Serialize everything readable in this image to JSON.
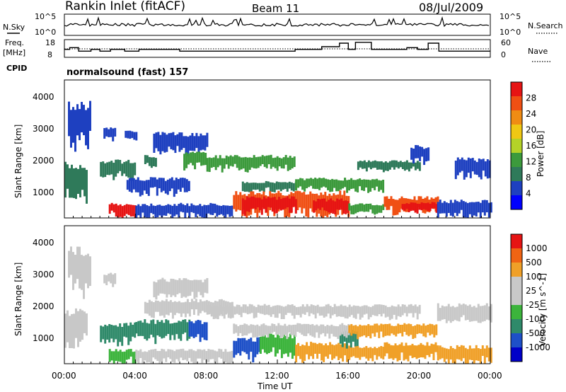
{
  "header": {
    "station": "Rankin Inlet (fitACF)",
    "beam": "Beam 11",
    "date": "08/Jul/2009",
    "cpid_label": "CPID",
    "cpid_value": "normalsound (fast) 157"
  },
  "nsky_panel": {
    "left_label": "N.Sky",
    "right_label": "N.Search",
    "left_ticks": [
      "10^5",
      "10^0"
    ],
    "right_ticks": [
      "10^5",
      "10^0"
    ]
  },
  "freq_panel": {
    "left_label_1": "Freq.",
    "left_label_2": "[MHz]",
    "right_label": "Nave",
    "left_ticks": [
      "18",
      "8"
    ],
    "right_ticks": [
      "60",
      "0"
    ],
    "freq_steps": [
      {
        "t0": 0.0,
        "t1": 0.3,
        "v": 12.5
      },
      {
        "t0": 0.3,
        "t1": 0.8,
        "v": 13.5
      },
      {
        "t0": 0.8,
        "t1": 1.5,
        "v": 11.5
      },
      {
        "t0": 1.5,
        "t1": 2.0,
        "v": 12.5
      },
      {
        "t0": 2.0,
        "t1": 2.6,
        "v": 11.5
      },
      {
        "t0": 2.6,
        "t1": 3.4,
        "v": 12.5
      },
      {
        "t0": 3.4,
        "t1": 4.2,
        "v": 11.5
      },
      {
        "t0": 4.2,
        "t1": 6.5,
        "v": 12.5
      },
      {
        "t0": 6.5,
        "t1": 10.0,
        "v": 11.5
      },
      {
        "t0": 10.0,
        "t1": 13.0,
        "v": 11.5
      },
      {
        "t0": 13.0,
        "t1": 14.5,
        "v": 12.5
      },
      {
        "t0": 14.5,
        "t1": 15.5,
        "v": 14.0
      },
      {
        "t0": 15.5,
        "t1": 16.0,
        "v": 16.0
      },
      {
        "t0": 16.0,
        "t1": 16.4,
        "v": 12.5
      },
      {
        "t0": 16.4,
        "t1": 17.3,
        "v": 16.5
      },
      {
        "t0": 17.3,
        "t1": 19.3,
        "v": 12.5
      },
      {
        "t0": 19.3,
        "t1": 19.9,
        "v": 13.5
      },
      {
        "t0": 19.9,
        "t1": 20.5,
        "v": 12.5
      },
      {
        "t0": 20.5,
        "t1": 21.1,
        "v": 16.0
      },
      {
        "t0": 21.1,
        "t1": 24.0,
        "v": 11.5
      }
    ]
  },
  "chart_data": [
    {
      "type": "heatmap",
      "quantity": "power",
      "ylabel": "Slant Range [km]",
      "ylim": [
        180,
        4500
      ],
      "yticks": [
        "1000",
        "2000",
        "3000",
        "4000"
      ],
      "xlim_hours": [
        0,
        24
      ],
      "colorbar": {
        "label": "Power [dB]",
        "ticks": [
          "28",
          "24",
          "20",
          "16",
          "12",
          "8",
          "4"
        ],
        "colors": [
          "#0000ff",
          "#1e40c0",
          "#2f7a5a",
          "#3c9a3c",
          "#b4d228",
          "#f0c814",
          "#f08c14",
          "#f05014",
          "#e61414"
        ]
      },
      "regions": [
        {
          "t0": 0.0,
          "t1": 1.2,
          "r0": 700,
          "r1": 1800,
          "c": 2
        },
        {
          "t0": 0.2,
          "t1": 1.5,
          "r0": 2400,
          "r1": 3700,
          "c": 1
        },
        {
          "t0": 2.2,
          "t1": 2.8,
          "r0": 2600,
          "r1": 3000,
          "c": 1
        },
        {
          "t0": 3.4,
          "t1": 4.0,
          "r0": 2600,
          "r1": 2900,
          "c": 1
        },
        {
          "t0": 2.0,
          "t1": 4.0,
          "r0": 1400,
          "r1": 1950,
          "c": 2
        },
        {
          "t0": 4.5,
          "t1": 5.2,
          "r0": 1700,
          "r1": 2100,
          "c": 2
        },
        {
          "t0": 5.0,
          "t1": 8.0,
          "r0": 2200,
          "r1": 2800,
          "c": 1
        },
        {
          "t0": 6.7,
          "t1": 8.0,
          "r0": 1750,
          "r1": 2250,
          "c": 3
        },
        {
          "t0": 3.5,
          "t1": 7.0,
          "r0": 900,
          "r1": 1400,
          "c": 1
        },
        {
          "t0": 2.5,
          "t1": 4.0,
          "r0": 200,
          "r1": 600,
          "c": 8
        },
        {
          "t0": 4.0,
          "t1": 9.5,
          "r0": 180,
          "r1": 600,
          "c": 1
        },
        {
          "t0": 8.0,
          "t1": 13.0,
          "r0": 1650,
          "r1": 2100,
          "c": 3
        },
        {
          "t0": 10.0,
          "t1": 13.0,
          "r0": 1000,
          "r1": 1300,
          "c": 2
        },
        {
          "t0": 13.0,
          "t1": 18.0,
          "r0": 1000,
          "r1": 1400,
          "c": 3
        },
        {
          "t0": 16.5,
          "t1": 20.0,
          "r0": 1650,
          "r1": 1950,
          "c": 2
        },
        {
          "t0": 9.5,
          "t1": 16.0,
          "r0": 220,
          "r1": 950,
          "c": 7
        },
        {
          "t0": 10.0,
          "t1": 13.0,
          "r0": 300,
          "r1": 800,
          "c": 8
        },
        {
          "t0": 14.0,
          "t1": 16.0,
          "r0": 300,
          "r1": 750,
          "c": 8
        },
        {
          "t0": 16.0,
          "t1": 18.0,
          "r0": 300,
          "r1": 600,
          "c": 3
        },
        {
          "t0": 18.0,
          "t1": 21.0,
          "r0": 300,
          "r1": 800,
          "c": 7
        },
        {
          "t0": 19.0,
          "t1": 21.0,
          "r0": 350,
          "r1": 650,
          "c": 8
        },
        {
          "t0": 21.0,
          "t1": 24.0,
          "r0": 200,
          "r1": 700,
          "c": 1
        },
        {
          "t0": 22.0,
          "t1": 24.0,
          "r0": 1400,
          "r1": 2000,
          "c": 1
        },
        {
          "t0": 19.5,
          "t1": 20.5,
          "r0": 1900,
          "r1": 2400,
          "c": 1
        }
      ]
    },
    {
      "type": "heatmap",
      "quantity": "velocity",
      "ylabel": "Slant Range [km]",
      "ylim": [
        180,
        4500
      ],
      "yticks": [
        "1000",
        "2000",
        "3000",
        "4000"
      ],
      "xlabel": "Time UT",
      "xticks": [
        "00:00",
        "04:00",
        "08:00",
        "12:00",
        "16:00",
        "20:00",
        "00:00"
      ],
      "xlim_hours": [
        0,
        24
      ],
      "colorbar": {
        "label": "Velocity [m s^-1]",
        "ticks": [
          "1000",
          "500",
          "100",
          "25",
          "-25",
          "-100",
          "-500",
          "-1000"
        ],
        "colors": [
          "#0000c8",
          "#1e50c8",
          "#2f8a6a",
          "#3cb43c",
          "#c8c8c8",
          "#c8c8c8",
          "#f0a028",
          "#f06414",
          "#e61414"
        ]
      },
      "regions": [
        {
          "t0": 0.0,
          "t1": 1.2,
          "r0": 700,
          "r1": 1800,
          "c": 4
        },
        {
          "t0": 0.2,
          "t1": 1.5,
          "r0": 2400,
          "r1": 3700,
          "c": 4
        },
        {
          "t0": 2.2,
          "t1": 2.8,
          "r0": 2600,
          "r1": 3000,
          "c": 4
        },
        {
          "t0": 5.0,
          "t1": 8.0,
          "r0": 2200,
          "r1": 2800,
          "c": 4
        },
        {
          "t0": 4.5,
          "t1": 9.5,
          "r0": 1650,
          "r1": 2150,
          "c": 4
        },
        {
          "t0": 2.0,
          "t1": 4.0,
          "r0": 800,
          "r1": 1400,
          "c": 2
        },
        {
          "t0": 4.0,
          "t1": 7.0,
          "r0": 900,
          "r1": 1500,
          "c": 2
        },
        {
          "t0": 7.0,
          "t1": 8.0,
          "r0": 850,
          "r1": 1500,
          "c": 1
        },
        {
          "t0": 2.5,
          "t1": 4.0,
          "r0": 200,
          "r1": 600,
          "c": 3
        },
        {
          "t0": 4.0,
          "t1": 9.5,
          "r0": 180,
          "r1": 600,
          "c": 4
        },
        {
          "t0": 9.5,
          "t1": 11.0,
          "r0": 300,
          "r1": 950,
          "c": 1
        },
        {
          "t0": 11.0,
          "t1": 13.0,
          "r0": 400,
          "r1": 1050,
          "c": 3
        },
        {
          "t0": 13.0,
          "t1": 16.0,
          "r0": 250,
          "r1": 800,
          "c": 6
        },
        {
          "t0": 15.5,
          "t1": 16.5,
          "r0": 700,
          "r1": 1200,
          "c": 2
        },
        {
          "t0": 16.0,
          "t1": 18.0,
          "r0": 300,
          "r1": 700,
          "c": 6
        },
        {
          "t0": 18.0,
          "t1": 21.0,
          "r0": 300,
          "r1": 800,
          "c": 6
        },
        {
          "t0": 21.0,
          "t1": 24.0,
          "r0": 200,
          "r1": 700,
          "c": 6
        },
        {
          "t0": 9.5,
          "t1": 16.0,
          "r0": 1000,
          "r1": 1400,
          "c": 4
        },
        {
          "t0": 16.0,
          "t1": 21.0,
          "r0": 1000,
          "r1": 1400,
          "c": 6
        },
        {
          "t0": 8.0,
          "t1": 20.0,
          "r0": 1600,
          "r1": 2000,
          "c": 4
        },
        {
          "t0": 21.0,
          "t1": 24.0,
          "r0": 1400,
          "r1": 2000,
          "c": 4
        }
      ]
    }
  ]
}
